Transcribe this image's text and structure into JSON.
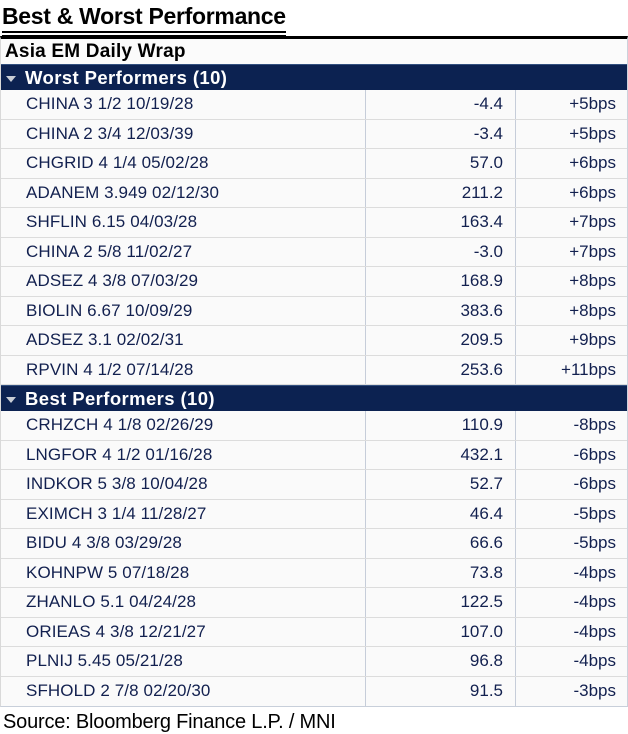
{
  "title": "Best & Worst Performance",
  "subtitle": "Asia EM Daily Wrap",
  "source": "Source: Bloomberg Finance L.P. / MNI",
  "colors": {
    "section_bar_bg": "#0c2251",
    "section_label_text": "#ffffff",
    "data_text": "#12204f",
    "row_bg": "#fafafa",
    "grid_vertical": "#c6cdd9",
    "grid_horizontal": "#dcdcdc"
  },
  "sections": [
    {
      "label": "Worst Performers (10)",
      "collapse_icon": "triangle-down-icon",
      "rows": [
        {
          "name": "CHINA 3 1/2 10/19/28",
          "value": "-4.4",
          "change": "+5bps"
        },
        {
          "name": "CHINA 2 3/4 12/03/39",
          "value": "-3.4",
          "change": "+5bps"
        },
        {
          "name": "CHGRID 4 1/4 05/02/28",
          "value": "57.0",
          "change": "+6bps"
        },
        {
          "name": "ADANEM 3.949 02/12/30",
          "value": "211.2",
          "change": "+6bps"
        },
        {
          "name": "SHFLIN 6.15 04/03/28",
          "value": "163.4",
          "change": "+7bps"
        },
        {
          "name": "CHINA 2 5/8 11/02/27",
          "value": "-3.0",
          "change": "+7bps"
        },
        {
          "name": "ADSEZ 4 3/8 07/03/29",
          "value": "168.9",
          "change": "+8bps"
        },
        {
          "name": "BIOLIN 6.67 10/09/29",
          "value": "383.6",
          "change": "+8bps"
        },
        {
          "name": "ADSEZ 3.1 02/02/31",
          "value": "209.5",
          "change": "+9bps"
        },
        {
          "name": "RPVIN 4 1/2 07/14/28",
          "value": "253.6",
          "change": "+11bps"
        }
      ]
    },
    {
      "label": "Best Performers (10)",
      "collapse_icon": "triangle-down-icon",
      "rows": [
        {
          "name": "CRHZCH 4 1/8 02/26/29",
          "value": "110.9",
          "change": "-8bps"
        },
        {
          "name": "LNGFOR 4 1/2 01/16/28",
          "value": "432.1",
          "change": "-6bps"
        },
        {
          "name": "INDKOR 5 3/8 10/04/28",
          "value": "52.7",
          "change": "-6bps"
        },
        {
          "name": "EXIMCH 3 1/4 11/28/27",
          "value": "46.4",
          "change": "-5bps"
        },
        {
          "name": "BIDU 4 3/8 03/29/28",
          "value": "66.6",
          "change": "-5bps"
        },
        {
          "name": "KOHNPW 5 07/18/28",
          "value": "73.8",
          "change": "-4bps"
        },
        {
          "name": "ZHANLO 5.1 04/24/28",
          "value": "122.5",
          "change": "-4bps"
        },
        {
          "name": "ORIEAS 4 3/8 12/21/27",
          "value": "107.0",
          "change": "-4bps"
        },
        {
          "name": "PLNIJ 5.45 05/21/28",
          "value": "96.8",
          "change": "-4bps"
        },
        {
          "name": "SFHOLD 2 7/8 02/20/30",
          "value": "91.5",
          "change": "-3bps"
        }
      ]
    }
  ]
}
